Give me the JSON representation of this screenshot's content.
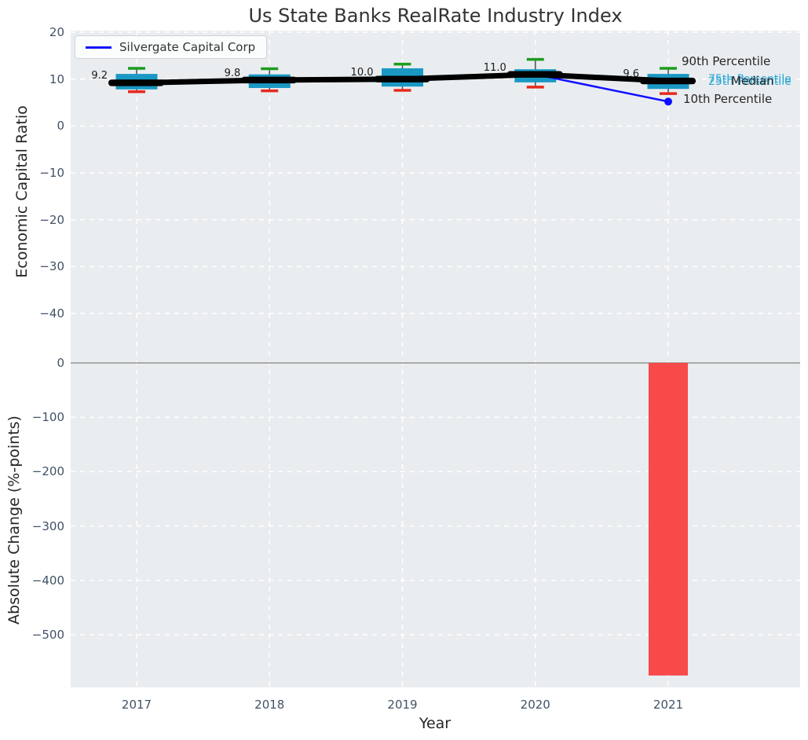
{
  "figure": {
    "title": "Us State Banks RealRate Industry Index",
    "xlabel": "Year",
    "legend": {
      "label": "Silvergate Capital Corp"
    }
  },
  "colors": {
    "plot_bg": "#e9edf0",
    "grid": "#ffffff",
    "tick": "#415266",
    "text_dark": "#262626",
    "box_fill": "#1a98c4",
    "whisker": "#555555",
    "cap_high": "#1e9c1e",
    "cap_low": "#e62a1f",
    "median_line": "#000000",
    "series_blue": "#1010ff",
    "bar_red": "#fa3c3c",
    "zero_line": "#a0a0a0",
    "annot_cyan": "#2ba6d2"
  },
  "chart_data": [
    {
      "type": "box",
      "panel": "top",
      "title": "Us State Banks RealRate Industry Index",
      "ylabel": "Economic Capital Ratio",
      "xlabel": "Year",
      "categories": [
        "2017",
        "2018",
        "2019",
        "2020",
        "2021"
      ],
      "ylim": [
        -48.2,
        20.3
      ],
      "yticks": [
        {
          "v": 20,
          "label": "20"
        },
        {
          "v": 10,
          "label": "10"
        },
        {
          "v": 0,
          "label": "0"
        },
        {
          "v": -10,
          "label": "−10"
        },
        {
          "v": -20,
          "label": "−20"
        },
        {
          "v": -30,
          "label": "−30"
        },
        {
          "v": -40,
          "label": "−40"
        }
      ],
      "grid": true,
      "legend_position": "upper left",
      "boxes": [
        {
          "category": "2017",
          "whisker_low": 7.3,
          "q1": 7.8,
          "median": 9.2,
          "q3": 11.1,
          "whisker_high": 12.3,
          "label": "9.2"
        },
        {
          "category": "2018",
          "whisker_low": 7.5,
          "q1": 8.1,
          "median": 9.8,
          "q3": 11.0,
          "whisker_high": 12.2,
          "label": "9.8"
        },
        {
          "category": "2019",
          "whisker_low": 7.6,
          "q1": 8.4,
          "median": 10.0,
          "q3": 12.3,
          "whisker_high": 13.2,
          "label": "10.0"
        },
        {
          "category": "2020",
          "whisker_low": 8.3,
          "q1": 9.3,
          "median": 11.0,
          "q3": 12.1,
          "whisker_high": 14.2,
          "label": "11.0"
        },
        {
          "category": "2021",
          "whisker_low": 6.9,
          "q1": 7.9,
          "median": 9.6,
          "q3": 11.1,
          "whisker_high": 12.3,
          "label": "9.6"
        }
      ],
      "median_series": {
        "name": "Median",
        "values": [
          9.2,
          9.8,
          10.0,
          11.0,
          9.6
        ]
      },
      "series": [
        {
          "name": "Silvergate Capital Corp",
          "x": [
            "2020",
            "2021"
          ],
          "values": [
            11.0,
            5.2
          ],
          "color_key": "series_blue",
          "end_marker": true
        }
      ],
      "annotations": [
        {
          "id": "p90",
          "text": "90th Percentile",
          "color_key": "text_dark"
        },
        {
          "id": "p75",
          "text": "75th Percentile",
          "color_key": "annot_cyan"
        },
        {
          "id": "p25",
          "text": "25th Percentile",
          "color_key": "annot_cyan"
        },
        {
          "id": "median",
          "text": "Median",
          "color_key": "text_dark"
        },
        {
          "id": "p10",
          "text": "10th Percentile",
          "color_key": "text_dark"
        }
      ]
    },
    {
      "type": "bar",
      "panel": "bottom",
      "ylabel": "Absolute Change (%-points)",
      "categories": [
        "2017",
        "2018",
        "2019",
        "2020",
        "2021"
      ],
      "values": [
        null,
        null,
        null,
        null,
        -575
      ],
      "ylim": [
        -597,
        20.2
      ],
      "yticks": [
        {
          "v": 0,
          "label": "0"
        },
        {
          "v": -100,
          "label": "−100"
        },
        {
          "v": -200,
          "label": "−200"
        },
        {
          "v": -300,
          "label": "−300"
        },
        {
          "v": -400,
          "label": "−400"
        },
        {
          "v": -500,
          "label": "−500"
        }
      ],
      "grid": true,
      "zero_line": true
    }
  ]
}
